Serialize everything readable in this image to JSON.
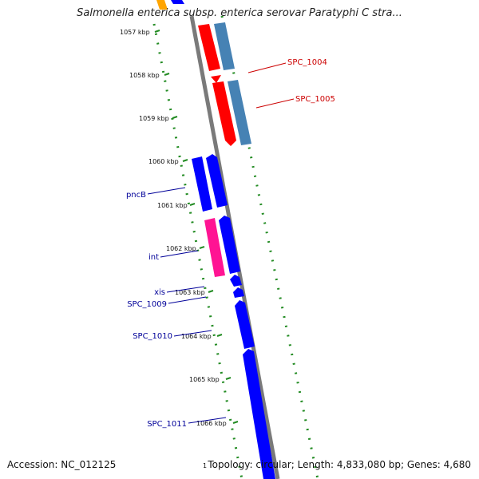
{
  "title": "Salmonella enterica subsp. enterica serovar Paratyphi C stra...",
  "accession": "Accession: NC_012125",
  "summary": "Topology: circular; Length: 4,833,080 bp; Genes: 4,680",
  "bottom_tick": "1",
  "colors": {
    "forward_gene": "#0000ff",
    "reverse_gene": "#ff0000",
    "feature_steelblue": "#4682b4",
    "feature_pink": "#ff1493",
    "feature_orange": "#ffa500",
    "backbone": "#808080",
    "gc_track": "#228b22",
    "label_blue": "#000099",
    "label_red": "#cc0000"
  },
  "ticks": [
    "1057 kbp",
    "1058 kbp",
    "1059 kbp",
    "1060 kbp",
    "1061 kbp",
    "1062 kbp",
    "1063 kbp",
    "1064 kbp",
    "1065 kbp",
    "1066 kbp"
  ],
  "gene_labels": {
    "spc_1004": "SPC_1004",
    "spc_1005": "SPC_1005",
    "pncb": "pncB",
    "int": "int",
    "xis": "xis",
    "spc_1009": "SPC_1009",
    "spc_1010": "SPC_1010",
    "spc_1011": "SPC_1011"
  }
}
